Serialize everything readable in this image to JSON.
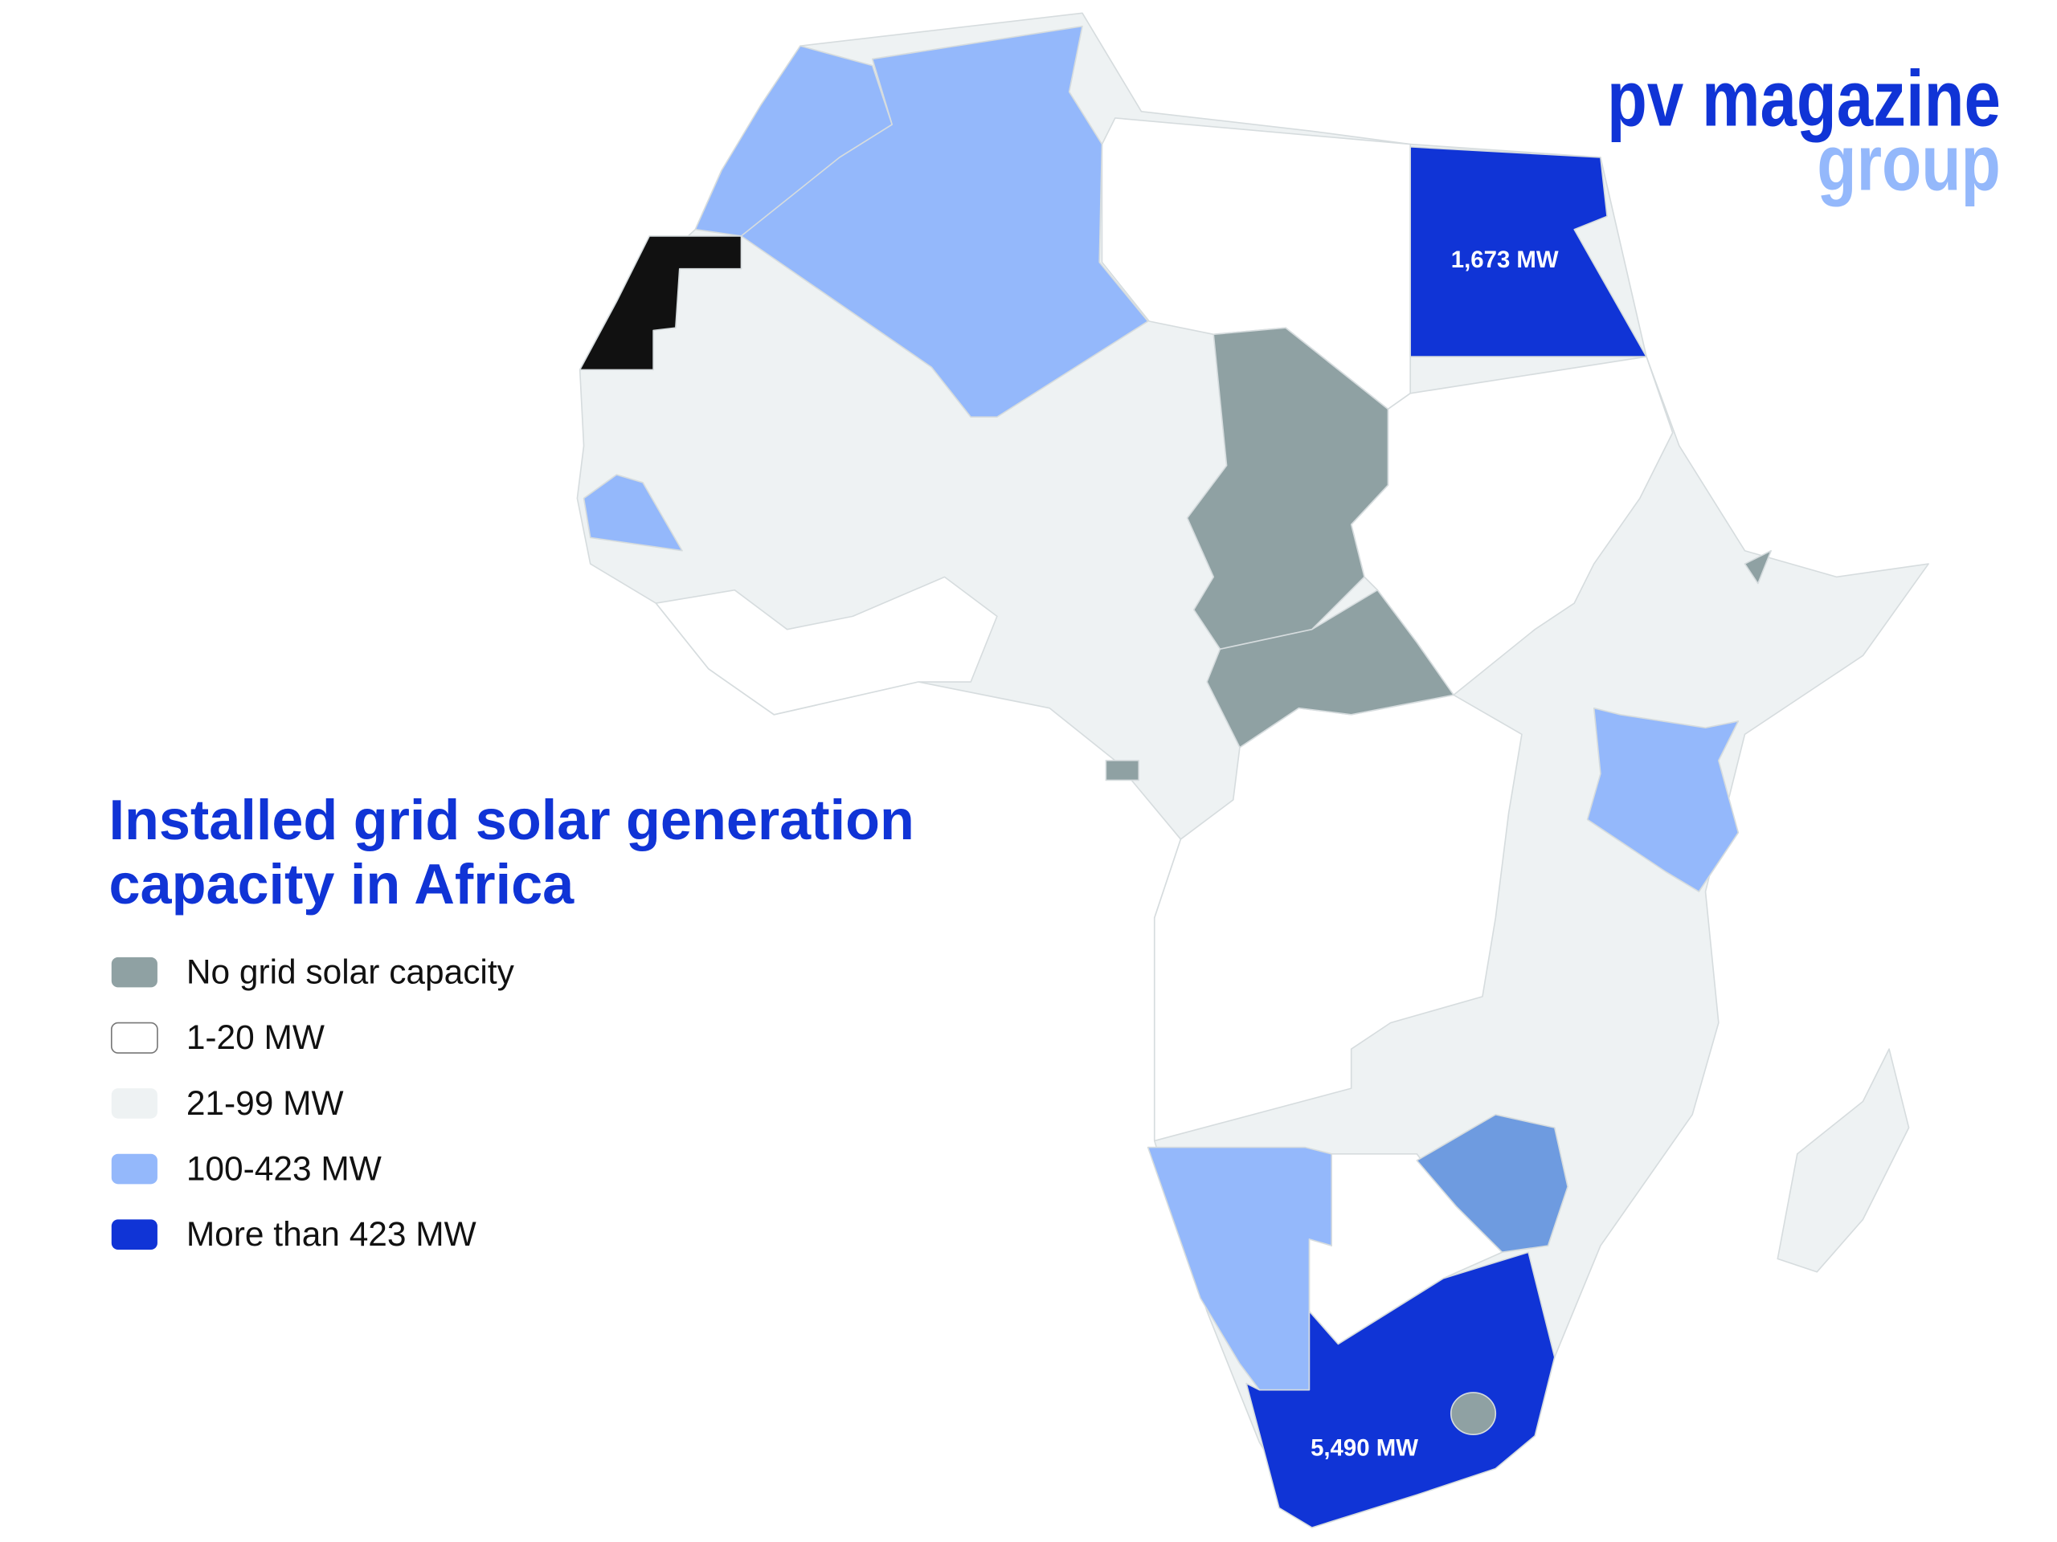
{
  "brand": {
    "name": "pv magazine",
    "sub": "group"
  },
  "title": [
    "Installed grid solar generation",
    "capacity in Africa"
  ],
  "legend": [
    {
      "label": "No grid solar capacity",
      "color": "#8fa1a3"
    },
    {
      "label": "1-20 MW",
      "color": "#ffffff"
    },
    {
      "label": "21-99 MW",
      "color": "#eef2f3"
    },
    {
      "label": "100-423 MW",
      "color": "#94b8fb"
    },
    {
      "label": "More than 423 MW",
      "color": "#1034d6"
    }
  ],
  "annotations": [
    {
      "country_label": "1,673 MW"
    },
    {
      "country_label": "5,490 MW"
    }
  ]
}
